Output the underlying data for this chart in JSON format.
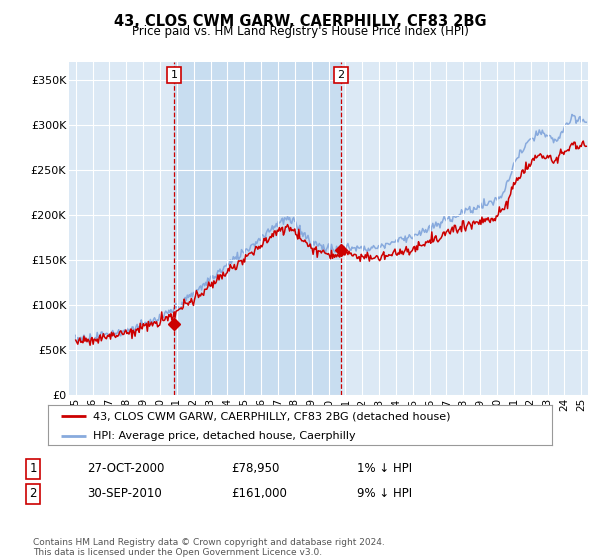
{
  "title": "43, CLOS CWM GARW, CAERPHILLY, CF83 2BG",
  "subtitle": "Price paid vs. HM Land Registry's House Price Index (HPI)",
  "ylabel_ticks": [
    "£0",
    "£50K",
    "£100K",
    "£150K",
    "£200K",
    "£250K",
    "£300K",
    "£350K"
  ],
  "ytick_values": [
    0,
    50000,
    100000,
    150000,
    200000,
    250000,
    300000,
    350000
  ],
  "ylim": [
    0,
    370000
  ],
  "xlim_start": 1994.6,
  "xlim_end": 2025.4,
  "background_color": "#ffffff",
  "plot_background": "#dce9f5",
  "highlight_color": "#c8ddf0",
  "grid_color": "#ffffff",
  "hpi_color": "#88aadd",
  "price_color": "#cc0000",
  "marker1_date": 2000.83,
  "marker1_value": 78950,
  "marker2_date": 2010.75,
  "marker2_value": 161000,
  "legend_label1": "43, CLOS CWM GARW, CAERPHILLY, CF83 2BG (detached house)",
  "legend_label2": "HPI: Average price, detached house, Caerphilly",
  "table_row1": [
    "1",
    "27-OCT-2000",
    "£78,950",
    "1% ↓ HPI"
  ],
  "table_row2": [
    "2",
    "30-SEP-2010",
    "£161,000",
    "9% ↓ HPI"
  ],
  "footer": "Contains HM Land Registry data © Crown copyright and database right 2024.\nThis data is licensed under the Open Government Licence v3.0.",
  "xtick_years": [
    1995,
    1996,
    1997,
    1998,
    1999,
    2000,
    2001,
    2002,
    2003,
    2004,
    2005,
    2006,
    2007,
    2008,
    2009,
    2010,
    2011,
    2012,
    2013,
    2014,
    2015,
    2016,
    2017,
    2018,
    2019,
    2020,
    2021,
    2022,
    2023,
    2024,
    2025
  ]
}
